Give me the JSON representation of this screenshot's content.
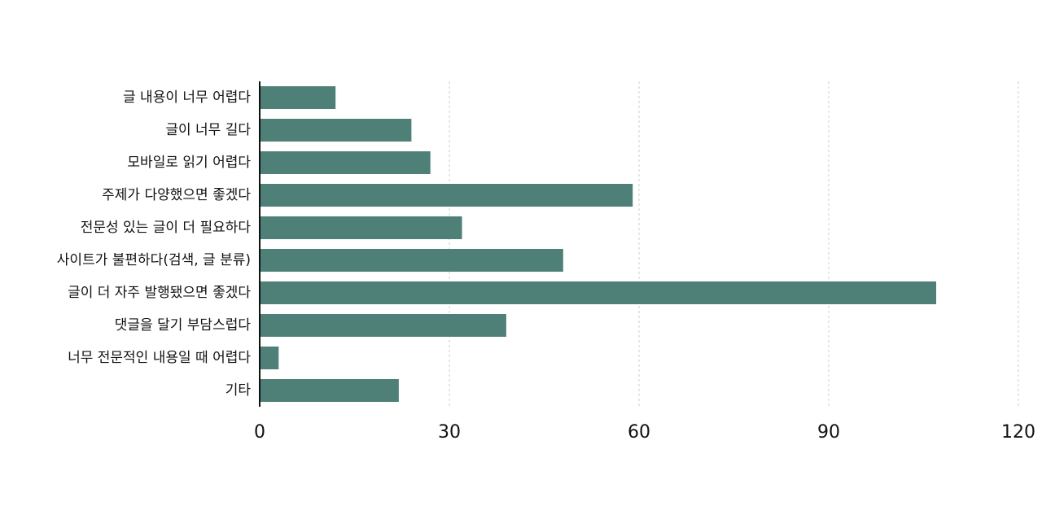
{
  "chart_data": {
    "type": "bar",
    "orientation": "horizontal",
    "categories": [
      "글 내용이 너무 어렵다",
      "글이 너무 길다",
      "모바일로 읽기 어렵다",
      "주제가 다양했으면 좋겠다",
      "전문성 있는 글이 더 필요하다",
      "사이트가 불편하다(검색, 글 분류)",
      "글이 더 자주 발행됐으면 좋겠다",
      "댓글을 달기 부담스럽다",
      "너무 전문적인 내용일 때 어렵다",
      "기타"
    ],
    "values": [
      12,
      24,
      27,
      59,
      32,
      48,
      107,
      39,
      3,
      22
    ],
    "color": "#4e8077",
    "xlim": [
      0,
      120
    ],
    "xticks": [
      0,
      30,
      60,
      90,
      120
    ],
    "grid": true
  }
}
